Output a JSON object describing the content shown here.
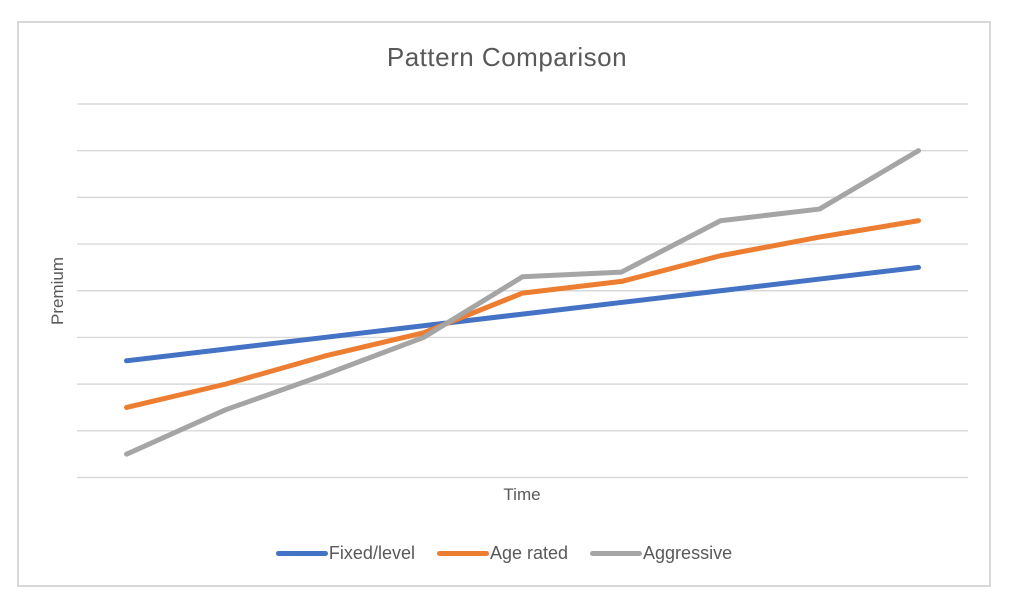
{
  "chart_data": {
    "type": "line",
    "title": "Pattern Comparison",
    "xlabel": "Time",
    "ylabel": "Premium",
    "x": [
      1,
      2,
      3,
      4,
      5,
      6,
      7,
      8,
      9
    ],
    "series": [
      {
        "name": "Fixed/level",
        "color": "#4472C4",
        "values": [
          2.5,
          2.75,
          3.0,
          3.25,
          3.5,
          3.75,
          4.0,
          4.25,
          4.5
        ]
      },
      {
        "name": "Age rated",
        "color": "#ED7D31",
        "values": [
          1.5,
          2.0,
          2.6,
          3.1,
          3.95,
          4.2,
          4.75,
          5.15,
          5.5
        ]
      },
      {
        "name": "Aggressive",
        "color": "#A5A5A5",
        "values": [
          0.5,
          1.45,
          2.2,
          3.0,
          4.3,
          4.4,
          5.5,
          5.75,
          7.0
        ]
      }
    ],
    "ylim": [
      0,
      8
    ],
    "y_gridline_step": 1,
    "tick_labels_visible": false,
    "grid": true,
    "legend_position": "bottom",
    "gridline_color": "#D9D9D9",
    "frame_color": "#D9D9D9",
    "text_color": "#595959"
  }
}
